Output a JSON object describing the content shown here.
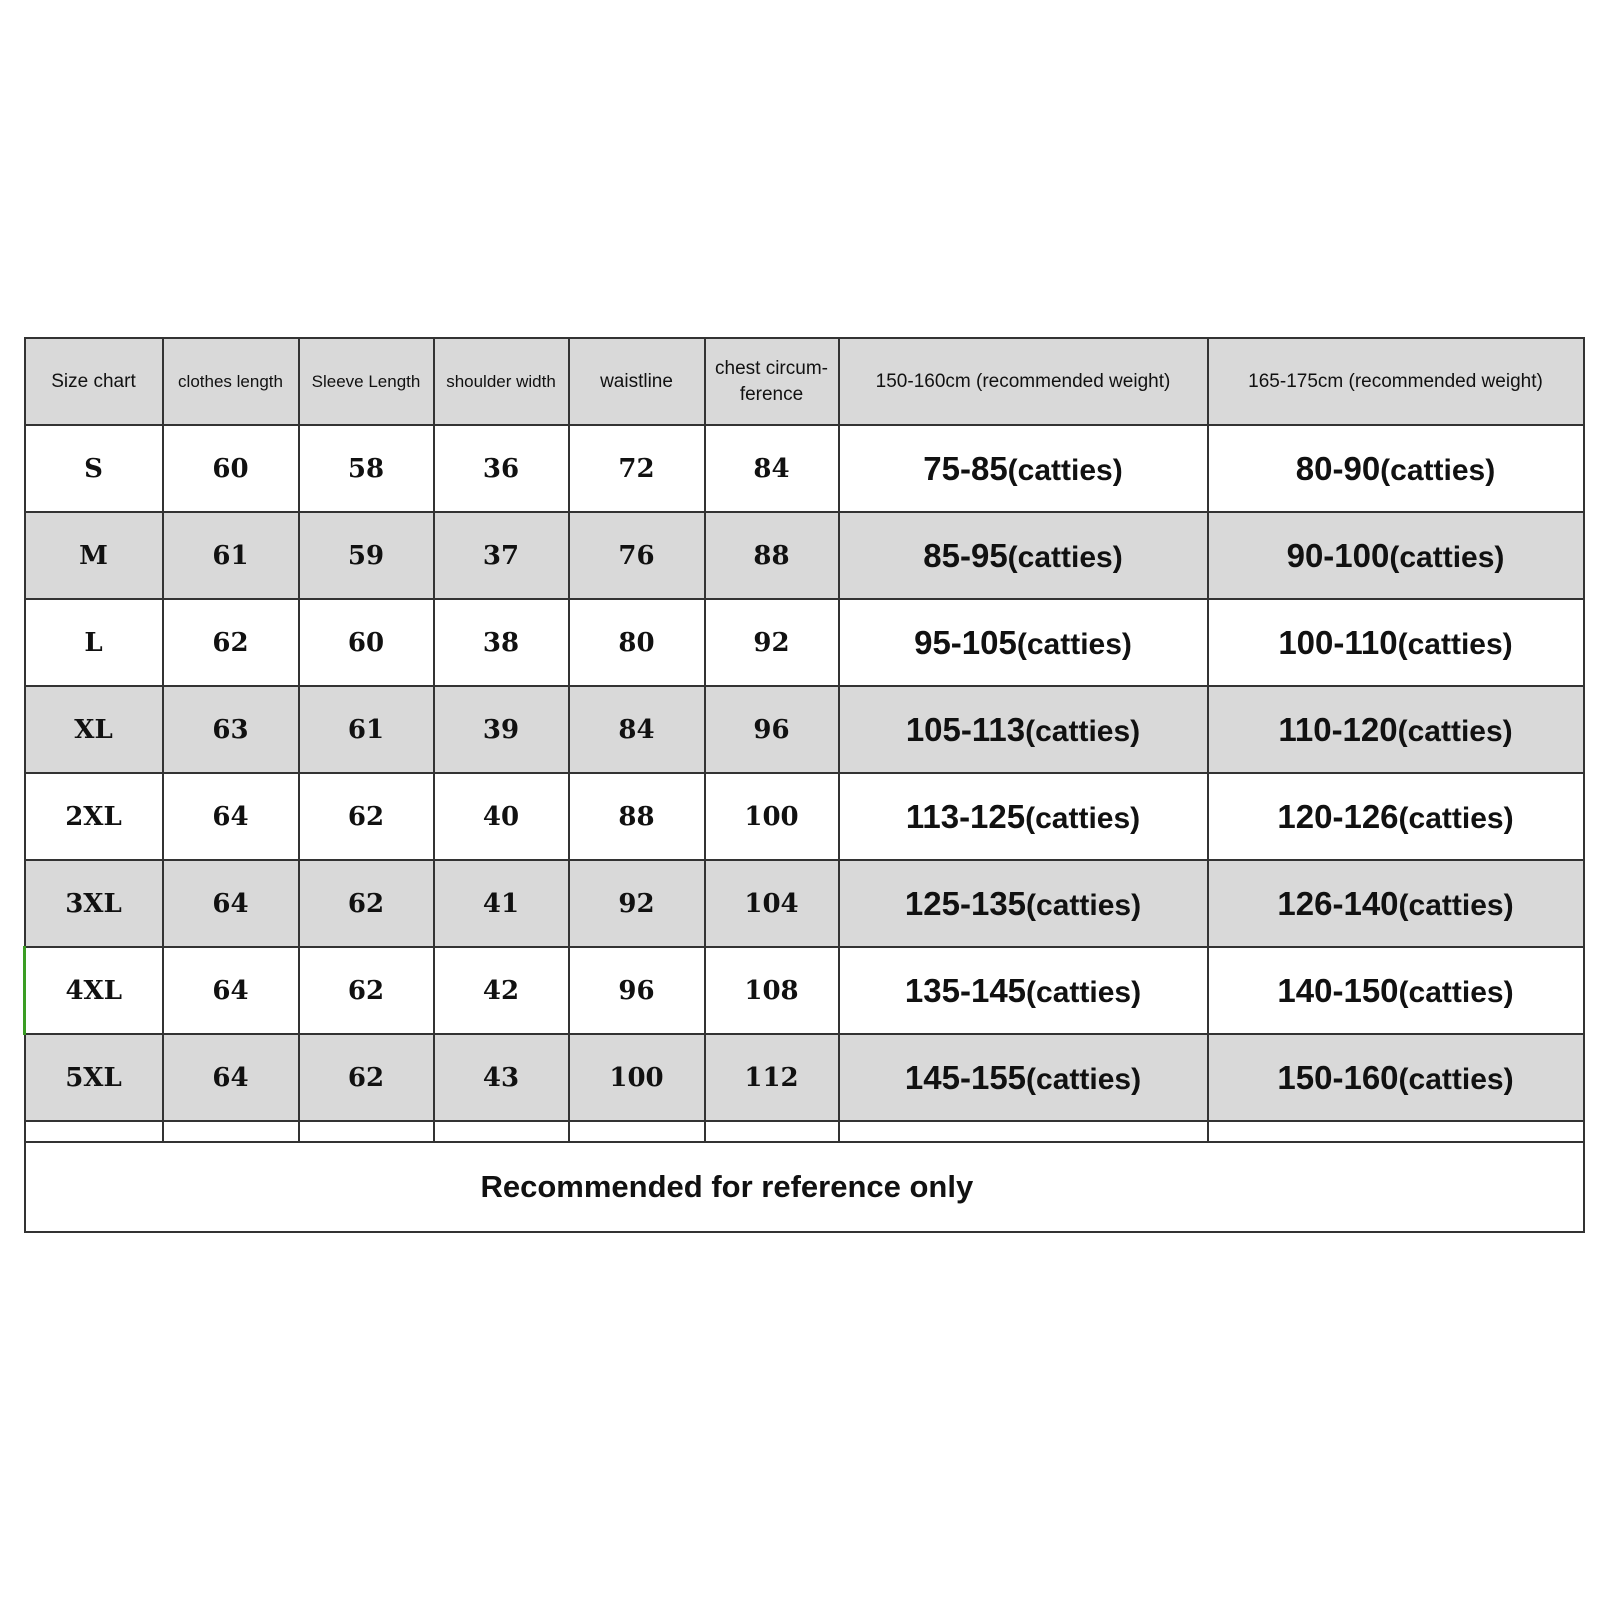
{
  "headers": [
    "Size chart",
    "clothes length",
    "Sleeve Length",
    "shoulder width",
    "waistline",
    "chest circum-ference",
    "150-160cm (recommended weight)",
    "165-175cm (recommended weight)"
  ],
  "rows": [
    {
      "size": "S",
      "clothes_length": "60",
      "sleeve_length": "58",
      "shoulder_width": "36",
      "waistline": "72",
      "chest": "84",
      "w1": "75-85",
      "w2": "80-90"
    },
    {
      "size": "M",
      "clothes_length": "61",
      "sleeve_length": "59",
      "shoulder_width": "37",
      "waistline": "76",
      "chest": "88",
      "w1": "85-95",
      "w2": "90-100"
    },
    {
      "size": "L",
      "clothes_length": "62",
      "sleeve_length": "60",
      "shoulder_width": "38",
      "waistline": "80",
      "chest": "92",
      "w1": "95-105",
      "w2": "100-110"
    },
    {
      "size": "XL",
      "clothes_length": "63",
      "sleeve_length": "61",
      "shoulder_width": "39",
      "waistline": "84",
      "chest": "96",
      "w1": "105-113",
      "w2": "110-120"
    },
    {
      "size": "2XL",
      "clothes_length": "64",
      "sleeve_length": "62",
      "shoulder_width": "40",
      "waistline": "88",
      "chest": "100",
      "w1": "113-125",
      "w2": "120-126"
    },
    {
      "size": "3XL",
      "clothes_length": "64",
      "sleeve_length": "62",
      "shoulder_width": "41",
      "waistline": "92",
      "chest": "104",
      "w1": "125-135",
      "w2": "126-140"
    },
    {
      "size": "4XL",
      "clothes_length": "64",
      "sleeve_length": "62",
      "shoulder_width": "42",
      "waistline": "96",
      "chest": "108",
      "w1": "135-145",
      "w2": "140-150"
    },
    {
      "size": "5XL",
      "clothes_length": "64",
      "sleeve_length": "62",
      "shoulder_width": "43",
      "waistline": "100",
      "chest": "112",
      "w1": "145-155",
      "w2": "150-160"
    }
  ],
  "weight_unit": "(catties)",
  "footer": "Recommended for reference only",
  "colors": {
    "header_bg": "#d9d9d9",
    "alt_row_bg": "#d9d9d9",
    "border": "#333333"
  }
}
